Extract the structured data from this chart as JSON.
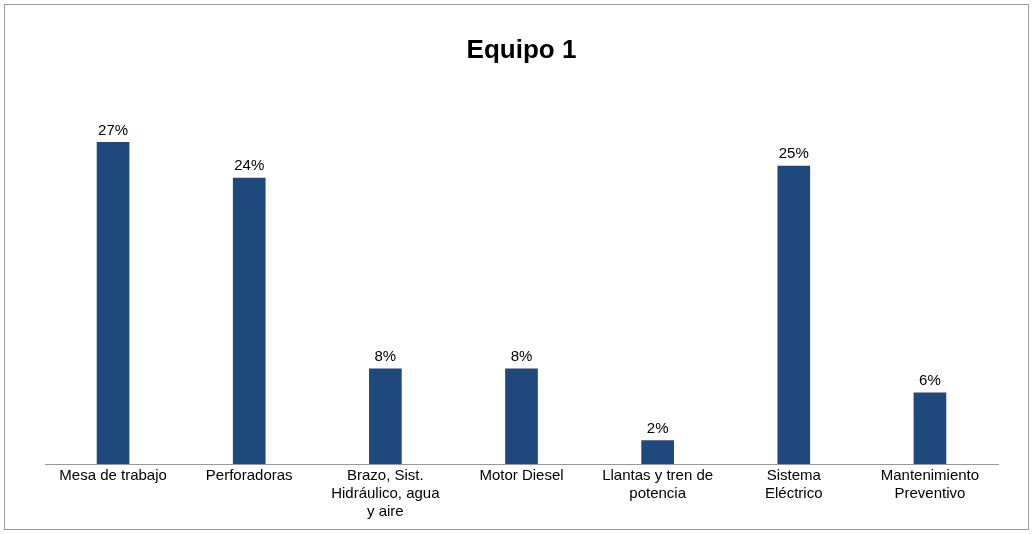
{
  "chart_data": {
    "type": "bar",
    "title": "Equipo 1",
    "categories": [
      "Mesa de trabajo",
      "Perforadoras",
      "Brazo, Sist. Hidráulico, agua y aire",
      "Motor Diesel",
      "Llantas y tren de potencia",
      "Sistema Eléctrico",
      "Mantenimiento Preventivo"
    ],
    "values": [
      27,
      24,
      8,
      8,
      2,
      25,
      6
    ],
    "value_labels": [
      "27%",
      "24%",
      "8%",
      "8%",
      "2%",
      "25%",
      "6%"
    ],
    "color": "#1f497d",
    "grid": false,
    "legend": false
  }
}
